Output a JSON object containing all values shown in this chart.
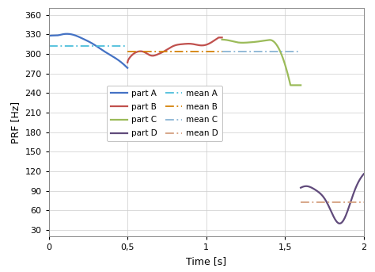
{
  "ylabel": "PRF [Hz]",
  "xlabel": "Time [s]",
  "ylim": [
    20,
    370
  ],
  "xlim": [
    0,
    2.0
  ],
  "yticks": [
    30,
    60,
    90,
    120,
    150,
    180,
    210,
    240,
    270,
    300,
    330,
    360
  ],
  "xticks": [
    0,
    0.5,
    1.0,
    1.5,
    2.0
  ],
  "xtick_labels": [
    "0",
    "0,5",
    "1",
    "1,5",
    "2"
  ],
  "mean_A": 312,
  "mean_A_xrange": [
    0,
    0.5
  ],
  "mean_B": 303,
  "mean_B_xrange": [
    0.5,
    1.1
  ],
  "mean_C": 303,
  "mean_C_xrange": [
    1.1,
    1.6
  ],
  "mean_D": 73,
  "mean_D_xrange": [
    1.6,
    2.0
  ],
  "color_A": "#4472C4",
  "color_B": "#C0504D",
  "color_C": "#9BBB59",
  "color_D": "#604A7B",
  "color_meanA": "#4DBEDB",
  "color_meanB": "#D4820A",
  "color_meanC": "#8AB4D4",
  "color_meanD": "#D4A080",
  "background": "#FFFFFF",
  "grid_color": "#CCCCCC"
}
